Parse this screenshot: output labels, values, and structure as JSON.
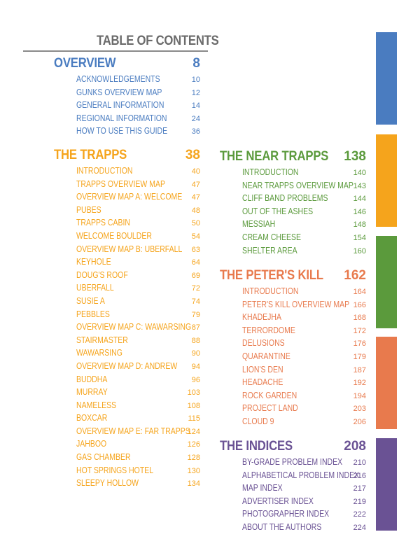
{
  "title": "TABLE OF CONTENTS",
  "colors": {
    "overview": "#4a7cc0",
    "trapps": "#f5a41c",
    "near_trapps": "#5b9a3c",
    "peters_kill": "#e87a4d",
    "indices": "#6a5294",
    "title": "#6b6b6b"
  },
  "sections": {
    "overview": {
      "title": "OVERVIEW",
      "page": "8",
      "items": [
        {
          "label": "ACKNOWLEDGEMENTS",
          "page": "10"
        },
        {
          "label": "GUNKS OVERVIEW MAP",
          "page": "12"
        },
        {
          "label": "GENERAL INFORMATION",
          "page": "14"
        },
        {
          "label": "REGIONAL INFORMATION",
          "page": "24"
        },
        {
          "label": "HOW TO USE THIS GUIDE",
          "page": "36"
        }
      ]
    },
    "trapps": {
      "title": "THE TRAPPS",
      "page": "38",
      "items": [
        {
          "label": "INTRODUCTION",
          "page": "40"
        },
        {
          "label": "TRAPPS OVERVIEW MAP",
          "page": "47"
        },
        {
          "label": "OVERVIEW MAP A: WELCOME",
          "page": "47"
        },
        {
          "label": "PUBES",
          "page": "48"
        },
        {
          "label": "TRAPPS CABIN",
          "page": "50"
        },
        {
          "label": "WELCOME BOULDER",
          "page": "54"
        },
        {
          "label": "OVERVIEW MAP B: UBERFALL",
          "page": "63"
        },
        {
          "label": "KEYHOLE",
          "page": "64"
        },
        {
          "label": "DOUG'S ROOF",
          "page": "69"
        },
        {
          "label": "UBERFALL",
          "page": "72"
        },
        {
          "label": "SUSIE A",
          "page": "74"
        },
        {
          "label": "PEBBLES",
          "page": "79"
        },
        {
          "label": "OVERVIEW MAP C: WAWARSING",
          "page": "87"
        },
        {
          "label": "STAIRMASTER",
          "page": "88"
        },
        {
          "label": "WAWARSING",
          "page": "90"
        },
        {
          "label": "OVERVIEW MAP D: ANDREW",
          "page": "94"
        },
        {
          "label": "BUDDHA",
          "page": "96"
        },
        {
          "label": "MURRAY",
          "page": "103"
        },
        {
          "label": "NAMELESS",
          "page": "108"
        },
        {
          "label": "BOXCAR",
          "page": "115"
        },
        {
          "label": "OVERVIEW MAP E: FAR TRAPPS",
          "page": "124"
        },
        {
          "label": "JAHBOO",
          "page": "126"
        },
        {
          "label": "GAS CHAMBER",
          "page": "128"
        },
        {
          "label": "HOT SPRINGS HOTEL",
          "page": "130"
        },
        {
          "label": "SLEEPY HOLLOW",
          "page": "134"
        }
      ]
    },
    "near_trapps": {
      "title": "THE NEAR TRAPPS",
      "page": "138",
      "items": [
        {
          "label": "INTRODUCTION",
          "page": "140"
        },
        {
          "label": "NEAR TRAPPS OVERVIEW MAP",
          "page": "143"
        },
        {
          "label": "CLIFF BAND PROBLEMS",
          "page": "144"
        },
        {
          "label": "OUT OF THE ASHES",
          "page": "146"
        },
        {
          "label": "MESSIAH",
          "page": "148"
        },
        {
          "label": "CREAM CHEESE",
          "page": "154"
        },
        {
          "label": "SHELTER AREA",
          "page": "160"
        }
      ]
    },
    "peters_kill": {
      "title": "THE PETER'S KILL",
      "page": "162",
      "items": [
        {
          "label": "INTRODUCTION",
          "page": "164"
        },
        {
          "label": "PETER'S KILL OVERVIEW MAP",
          "page": "166"
        },
        {
          "label": "KHADEJHA",
          "page": "168"
        },
        {
          "label": "TERRORDOME",
          "page": "172"
        },
        {
          "label": "DELUSIONS",
          "page": "176"
        },
        {
          "label": "QUARANTINE",
          "page": "179"
        },
        {
          "label": "LION'S DEN",
          "page": "187"
        },
        {
          "label": "HEADACHE",
          "page": "192"
        },
        {
          "label": "ROCK GARDEN",
          "page": "194"
        },
        {
          "label": "PROJECT LAND",
          "page": "203"
        },
        {
          "label": "CLOUD 9",
          "page": "206"
        }
      ]
    },
    "indices": {
      "title": "THE INDICES",
      "page": "208",
      "items": [
        {
          "label": "BY-GRADE PROBLEM INDEX",
          "page": "210"
        },
        {
          "label": "ALPHABETICAL PROBLEM INDEX",
          "page": "216"
        },
        {
          "label": "MAP INDEX",
          "page": "217"
        },
        {
          "label": "ADVERTISER INDEX",
          "page": "219"
        },
        {
          "label": "PHOTOGRAPHER INDEX",
          "page": "222"
        },
        {
          "label": "ABOUT THE AUTHORS",
          "page": "224"
        }
      ]
    }
  }
}
